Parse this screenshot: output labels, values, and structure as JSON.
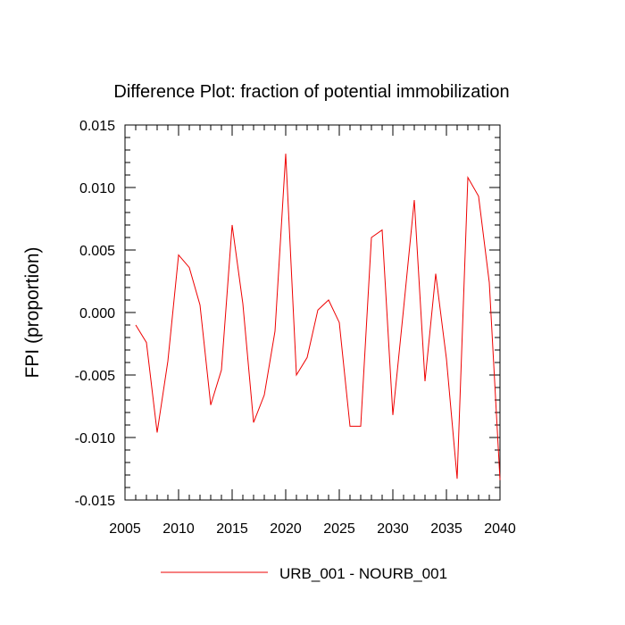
{
  "chart_data": {
    "type": "line",
    "title": "Difference Plot: fraction of potential immobilization",
    "xlabel": "",
    "ylabel": "FPI  (proportion)",
    "xlim": [
      2005,
      2040
    ],
    "ylim": [
      -0.015,
      0.015
    ],
    "x_ticks": [
      2005,
      2010,
      2015,
      2020,
      2025,
      2030,
      2035,
      2040
    ],
    "x_tick_labels": [
      "2005",
      "2010",
      "2015",
      "2020",
      "2025",
      "2030",
      "2035",
      "2040"
    ],
    "y_ticks": [
      -0.015,
      -0.01,
      -0.005,
      0,
      0.005,
      0.01,
      0.015
    ],
    "y_tick_labels": [
      "-0.015",
      "-0.010",
      "-0.005",
      "0.000",
      "0.005",
      "0.010",
      "0.015"
    ],
    "legend_position": "bottom-center",
    "grid": false,
    "series": [
      {
        "name": "URB_001 - NOURB_001",
        "color": "#ee0000",
        "x": [
          2006,
          2007,
          2008,
          2009,
          2010,
          2011,
          2012,
          2013,
          2014,
          2015,
          2016,
          2017,
          2018,
          2019,
          2020,
          2021,
          2022,
          2023,
          2024,
          2025,
          2026,
          2027,
          2028,
          2029,
          2030,
          2031,
          2032,
          2033,
          2034,
          2035,
          2036,
          2037,
          2038,
          2039,
          2040
        ],
        "values": [
          -0.001,
          -0.0024,
          -0.0096,
          -0.0039,
          0.0046,
          0.0036,
          0.0006,
          -0.0074,
          -0.0046,
          0.007,
          0.0007,
          -0.0088,
          -0.0066,
          -0.0015,
          0.0127,
          -0.005,
          -0.0036,
          0.0002,
          0.001,
          -0.0008,
          -0.0091,
          -0.0091,
          0.006,
          0.0066,
          -0.0082,
          0.0003,
          0.009,
          -0.0055,
          0.0031,
          -0.0037,
          -0.0133,
          0.0108,
          0.0093,
          0.0024,
          -0.0134
        ]
      }
    ]
  }
}
